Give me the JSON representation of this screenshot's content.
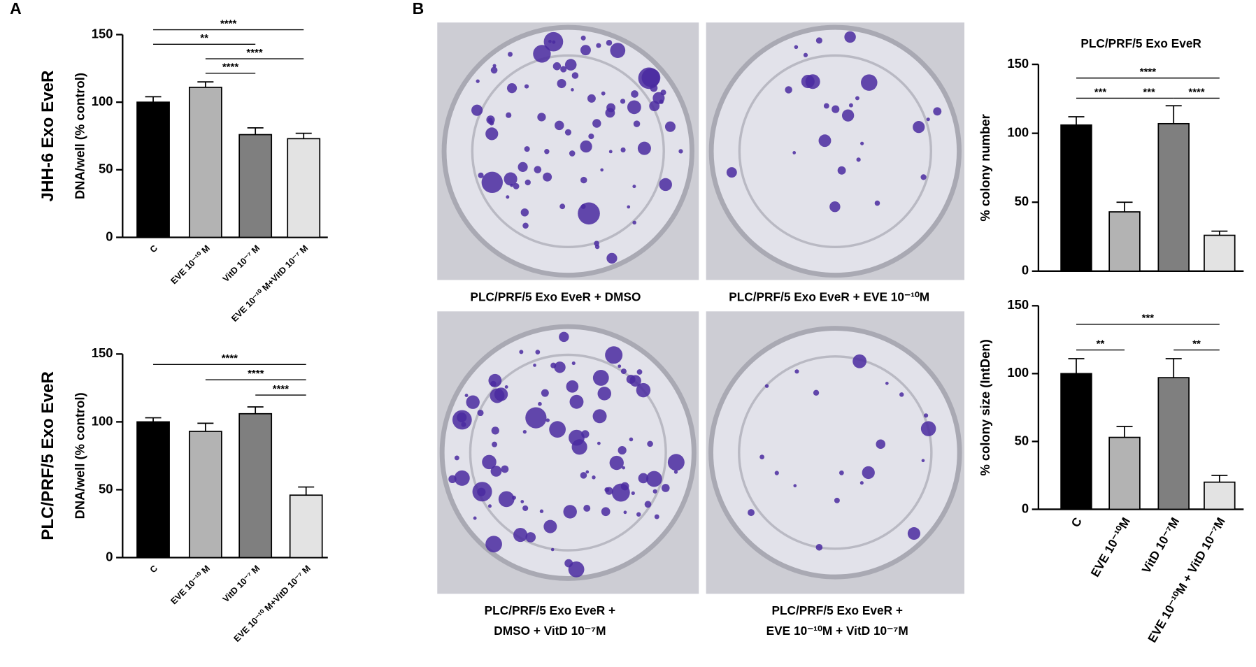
{
  "panels": [
    "A",
    "B"
  ],
  "photos": {
    "captions": [
      [
        "PLC/PRF/5 Exo EveR + DMSO"
      ],
      [
        "PLC/PRF/5 Exo EveR + EVE 10⁻¹⁰M"
      ],
      [
        "PLC/PRF/5 Exo EveR +",
        "DMSO + VitD 10⁻⁷M"
      ],
      [
        "PLC/PRF/5 Exo EveR +",
        "EVE 10⁻¹⁰M + VitD 10⁻⁷M"
      ]
    ]
  },
  "chart_data": [
    {
      "type": "bar",
      "row_label": "JHH-6 Exo EveR",
      "ylabel": "DNA/well (% control)",
      "categories": [
        "C",
        "EVE 10⁻¹⁰ M",
        "VitD 10⁻⁷ M",
        "EVE 10⁻¹⁰ M+VitD 10⁻⁷ M"
      ],
      "values": [
        100,
        111,
        76,
        73
      ],
      "errors": [
        4,
        4,
        5,
        4
      ],
      "colors": [
        "#000000",
        "#b3b3b3",
        "#7f7f7f",
        "#e3e3e3"
      ],
      "ylim": [
        0,
        150
      ],
      "yticks": [
        0,
        50,
        100,
        150
      ],
      "annotations": [
        {
          "between": [
            0,
            3
          ],
          "label": "****"
        },
        {
          "between": [
            0,
            2
          ],
          "label": "**"
        },
        {
          "between": [
            1,
            3
          ],
          "label": "****"
        },
        {
          "between": [
            1,
            2
          ],
          "label": "****"
        }
      ]
    },
    {
      "type": "bar",
      "row_label": "PLC/PRF/5 Exo EveR",
      "ylabel": "DNA/well (% control)",
      "categories": [
        "C",
        "EVE 10⁻¹⁰ M",
        "VitD 10⁻⁷ M",
        "EVE 10⁻¹⁰ M+VitD 10⁻⁷ M"
      ],
      "values": [
        100,
        93,
        106,
        46
      ],
      "errors": [
        3,
        6,
        5,
        6
      ],
      "colors": [
        "#000000",
        "#b3b3b3",
        "#7f7f7f",
        "#e3e3e3"
      ],
      "ylim": [
        0,
        150
      ],
      "yticks": [
        0,
        50,
        100,
        150
      ],
      "annotations": [
        {
          "between": [
            0,
            3
          ],
          "label": "****"
        },
        {
          "between": [
            1,
            3
          ],
          "label": "****"
        },
        {
          "between": [
            2,
            3
          ],
          "label": "****"
        }
      ]
    },
    {
      "type": "bar",
      "title": "PLC/PRF/5 Exo EveR",
      "ylabel": "% colony number",
      "values": [
        106,
        43,
        107,
        26
      ],
      "errors": [
        6,
        7,
        13,
        3
      ],
      "colors": [
        "#000000",
        "#b3b3b3",
        "#7f7f7f",
        "#e3e3e3"
      ],
      "ylim": [
        0,
        150
      ],
      "yticks": [
        0,
        50,
        100,
        150
      ],
      "annotations": [
        {
          "between": [
            0,
            3
          ],
          "label": "****"
        },
        {
          "between": [
            0,
            1
          ],
          "label": "***"
        },
        {
          "between": [
            1,
            2
          ],
          "label": "***"
        },
        {
          "between": [
            2,
            3
          ],
          "label": "****"
        }
      ]
    },
    {
      "type": "bar",
      "ylabel": "% colony size (IntDen)",
      "categories": [
        "C",
        "EVE 10⁻¹⁰M",
        "VitD 10⁻⁷M",
        "EVE 10⁻¹⁰M + VitD 10⁻⁷M"
      ],
      "values": [
        100,
        53,
        97,
        20
      ],
      "errors": [
        11,
        8,
        14,
        5
      ],
      "colors": [
        "#000000",
        "#b3b3b3",
        "#7f7f7f",
        "#e3e3e3"
      ],
      "ylim": [
        0,
        150
      ],
      "yticks": [
        0,
        50,
        100,
        150
      ],
      "annotations": [
        {
          "between": [
            0,
            3
          ],
          "label": "***"
        },
        {
          "between": [
            0,
            1
          ],
          "label": "**"
        },
        {
          "between": [
            2,
            3
          ],
          "label": "**"
        }
      ]
    }
  ]
}
